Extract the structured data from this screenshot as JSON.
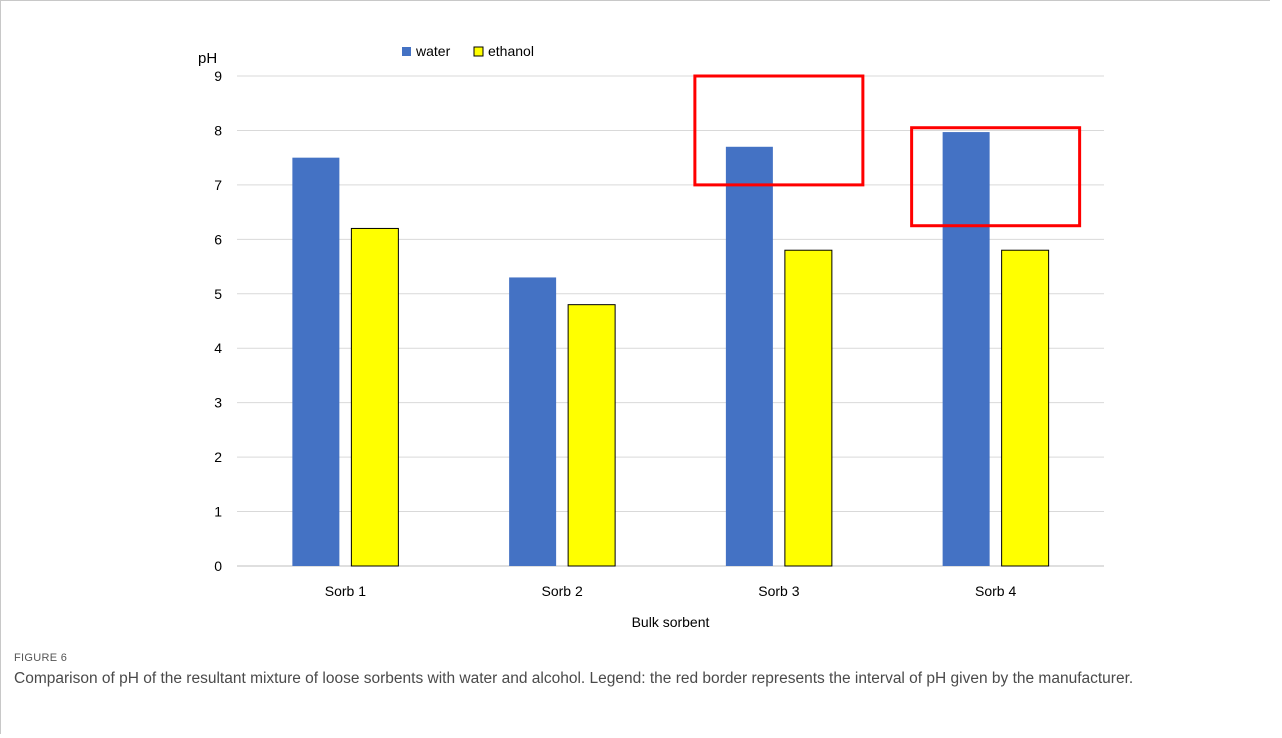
{
  "figure": {
    "label": "FIGURE 6",
    "caption": "Comparison of pH of the resultant mixture of loose sorbents with water and alcohol. Legend: the red border represents the interval of pH given by the manufacturer."
  },
  "chart_data": {
    "type": "bar",
    "title": "",
    "xlabel": "Bulk sorbent",
    "ylabel": "pH",
    "ylim": [
      0,
      9
    ],
    "yticks": [
      0,
      1,
      2,
      3,
      4,
      5,
      6,
      7,
      8,
      9
    ],
    "grid": true,
    "legend_position": "top",
    "categories": [
      "Sorb 1",
      "Sorb 2",
      "Sorb 3",
      "Sorb 4"
    ],
    "series": [
      {
        "name": "water",
        "color": "#4472c4",
        "values": [
          7.5,
          5.3,
          7.7,
          7.97
        ]
      },
      {
        "name": "ethanol",
        "color": "#ffff00",
        "outline": "#000000",
        "values": [
          6.2,
          4.8,
          5.8,
          5.8
        ]
      }
    ],
    "annotations": [
      {
        "shape": "rectangle",
        "color": "#ff0000",
        "category": "Sorb 3",
        "ph_range": [
          7.0,
          9.0
        ]
      },
      {
        "shape": "rectangle",
        "color": "#ff0000",
        "category": "Sorb 4",
        "ph_range": [
          6.25,
          8.05
        ]
      }
    ]
  }
}
